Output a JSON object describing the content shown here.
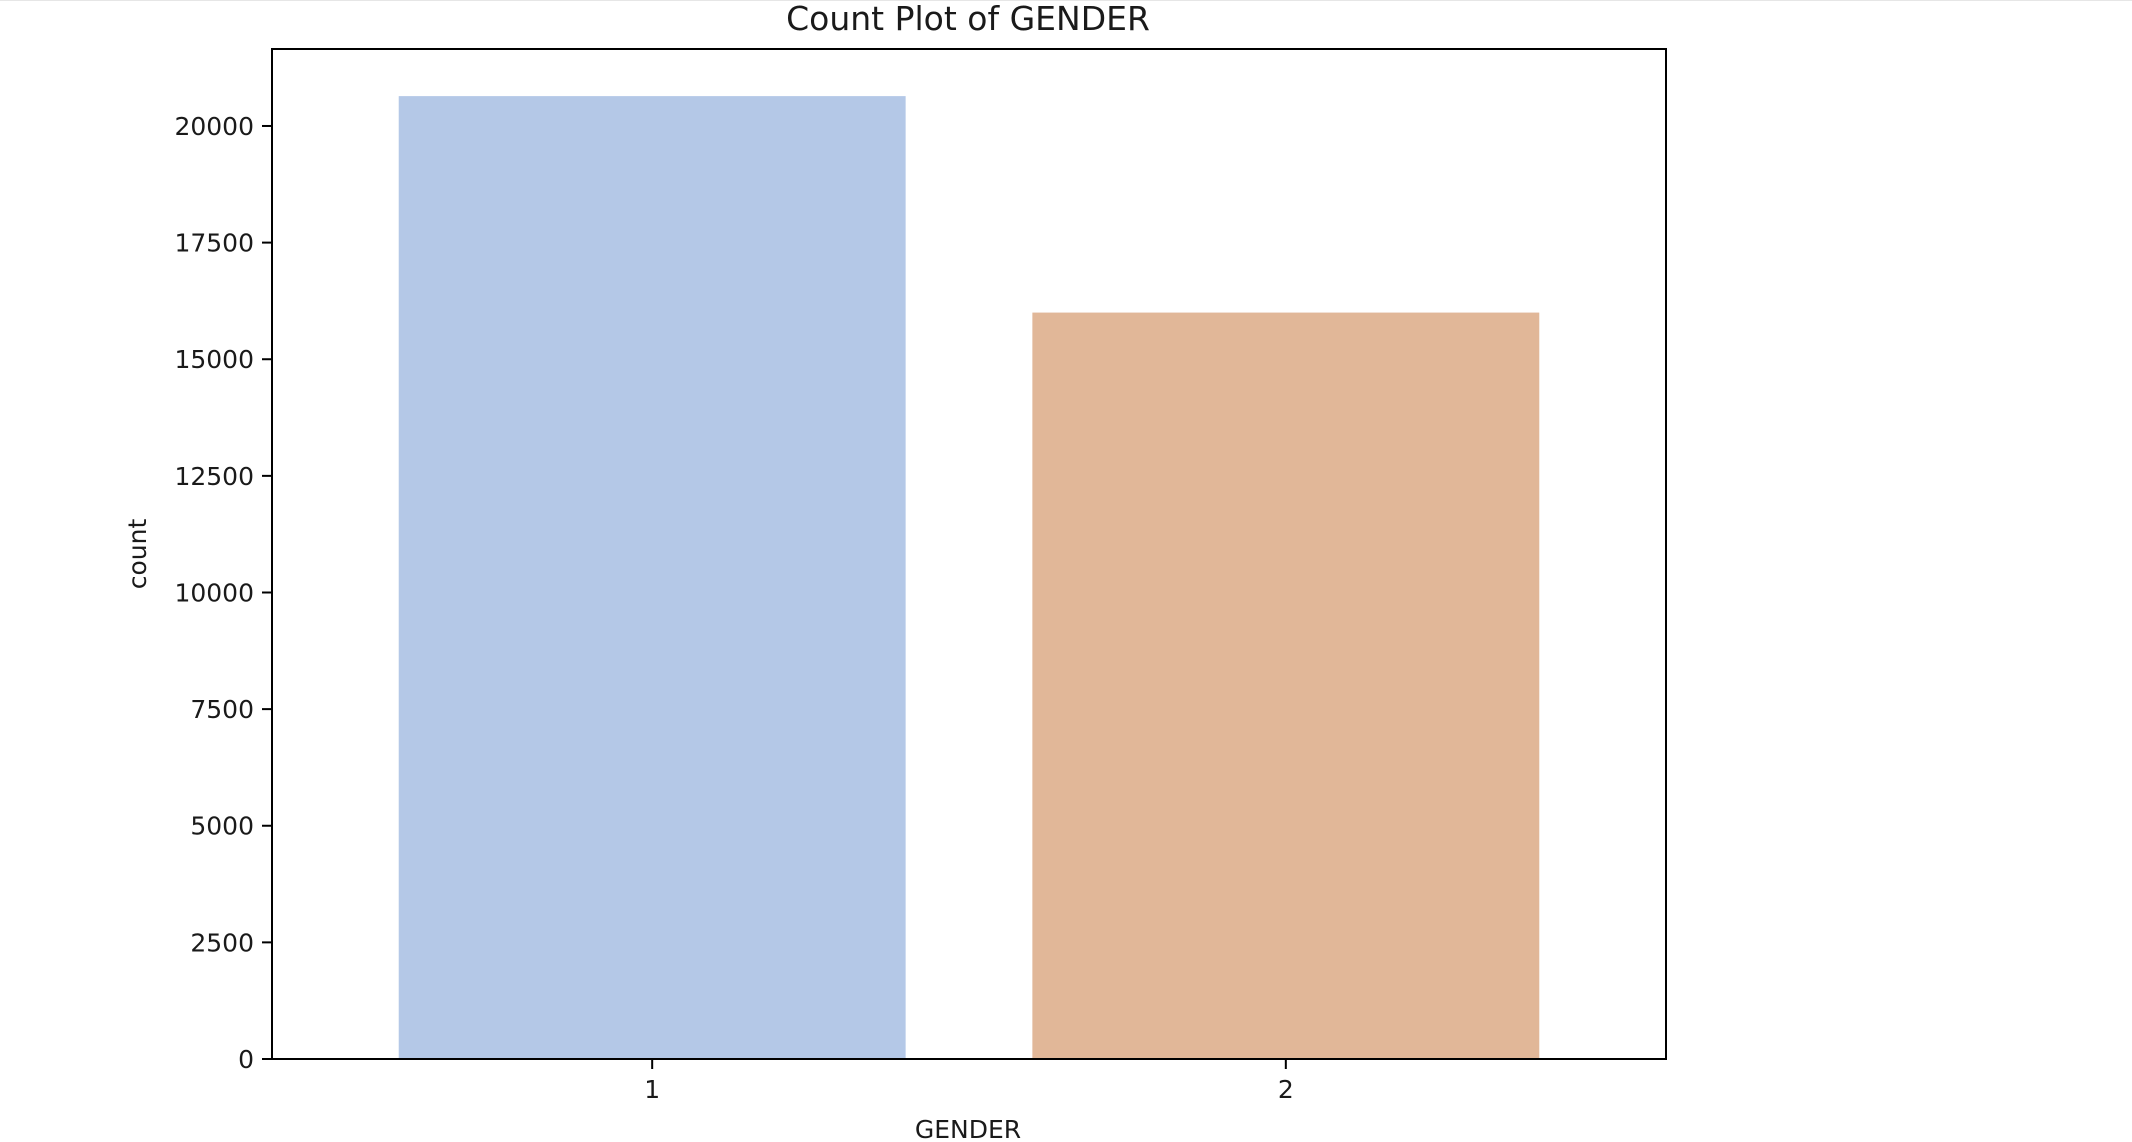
{
  "chart_data": {
    "type": "bar",
    "title": "Count Plot of GENDER",
    "xlabel": "GENDER",
    "ylabel": "count",
    "categories": [
      "1",
      "2"
    ],
    "values": [
      20640,
      16000
    ],
    "colors": [
      "#b4c8e7",
      "#e1b798"
    ],
    "ylim": [
      0,
      21650
    ],
    "yticks": [
      0,
      2500,
      5000,
      7500,
      10000,
      12500,
      15000,
      17500,
      20000
    ],
    "grid": false
  }
}
